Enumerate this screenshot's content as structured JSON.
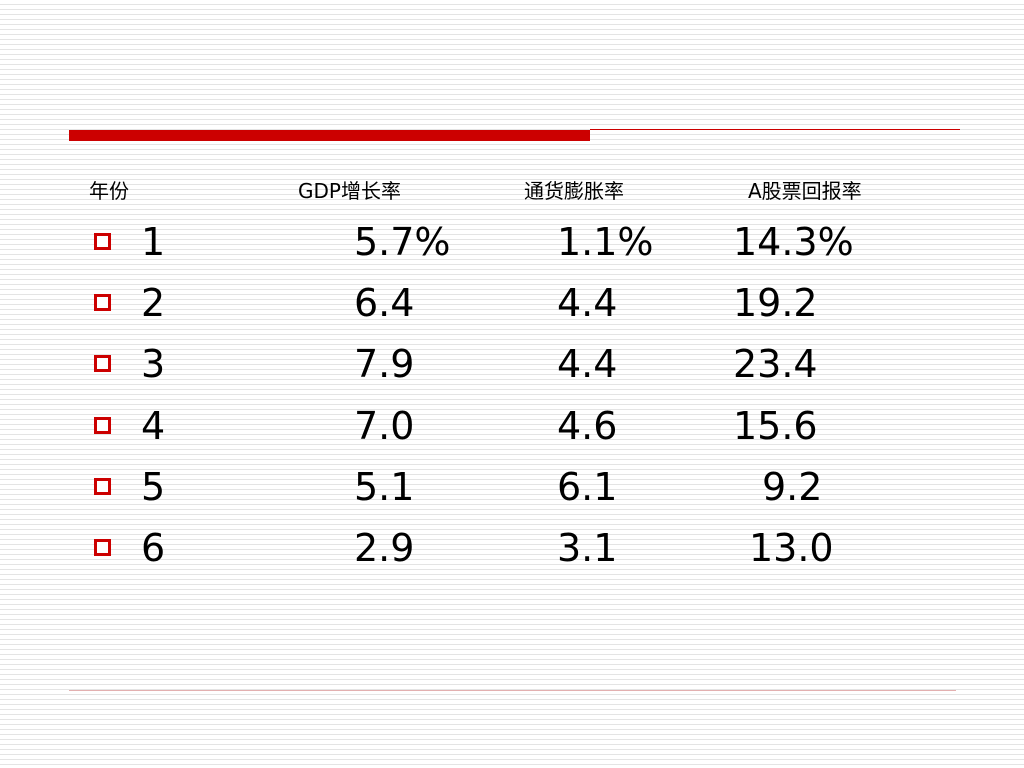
{
  "table": {
    "headers": {
      "year": "年份",
      "gdp_growth": "GDP增长率",
      "inflation": "通货膨胀率",
      "stock_return": "A股票回报率"
    },
    "rows": [
      {
        "year": "1",
        "gdp_growth": "5.7%",
        "inflation": "1.1%",
        "stock_return": "14.3%"
      },
      {
        "year": "2",
        "gdp_growth": "6.4",
        "inflation": "4.4",
        "stock_return": "19.2"
      },
      {
        "year": "3",
        "gdp_growth": "7.9",
        "inflation": "4.4",
        "stock_return": "23.4"
      },
      {
        "year": "4",
        "gdp_growth": "7.0",
        "inflation": "4.6",
        "stock_return": "15.6"
      },
      {
        "year": "5",
        "gdp_growth": "5.1",
        "inflation": "6.1",
        "stock_return": "9.2"
      },
      {
        "year": "6",
        "gdp_growth": "2.9",
        "inflation": "3.1",
        "stock_return": "13.0"
      }
    ]
  },
  "theme": {
    "accent": "#cc0000"
  }
}
